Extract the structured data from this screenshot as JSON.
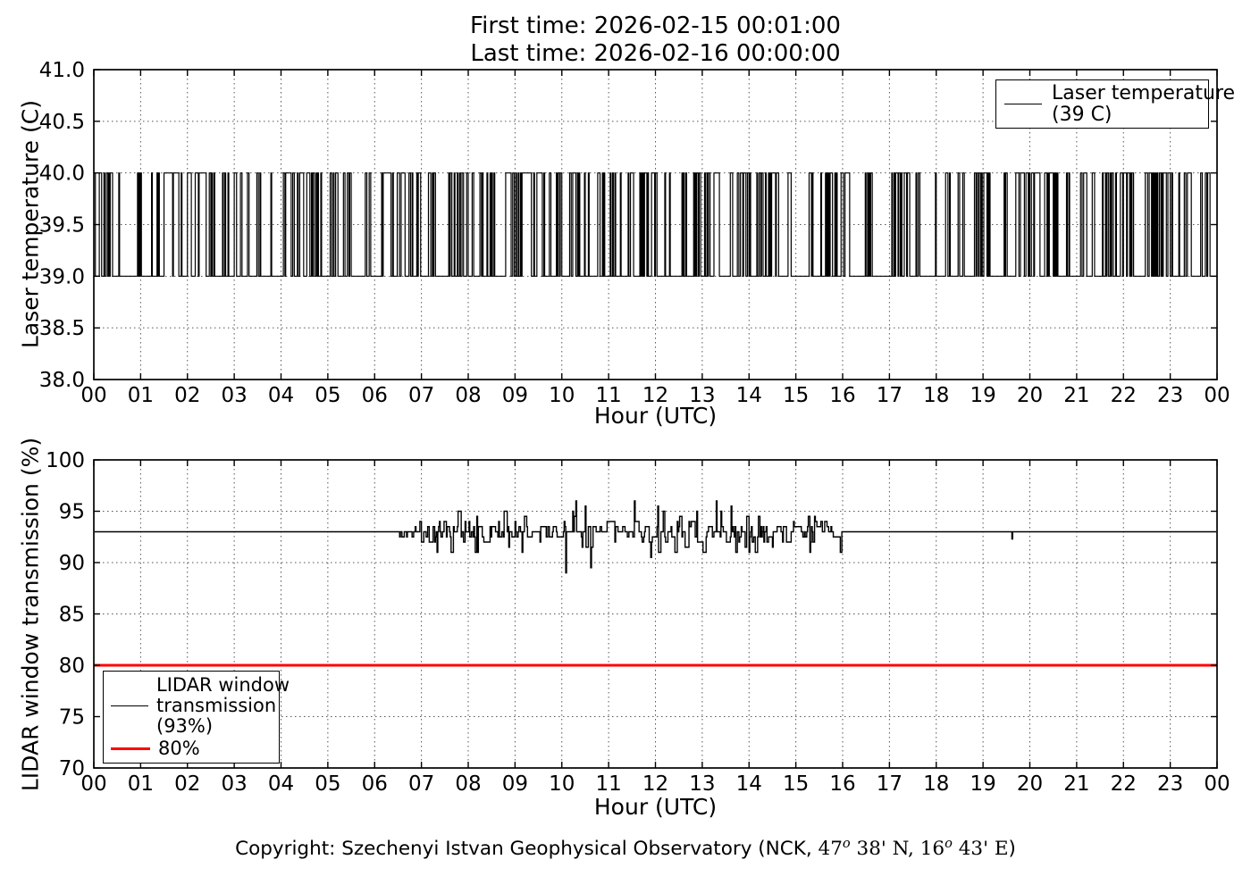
{
  "header": {
    "title_line1": "First time: 2026-02-15 00:01:00",
    "title_line2": "Last time: 2026-02-16 00:00:00"
  },
  "footer": {
    "copyright": {
      "prefix": "Copyright: Szechenyi Istvan Geophysical Observatory (NCK, ",
      "lat_degrees": "47",
      "degree_symbol": "o",
      "lat_minutes": " 38' N, ",
      "lon_degrees": "16",
      "lon_minutes": " 43' E",
      "suffix": ")"
    }
  },
  "colors": {
    "series_black": "#000000",
    "threshold_red": "#ff0000",
    "grid": "#555555",
    "frame": "#000000"
  },
  "chart_data": [
    {
      "type": "line",
      "title": "",
      "xlabel": "Hour (UTC)",
      "ylabel": "Laser temperature (C)",
      "xlim": [
        0,
        24
      ],
      "ylim": [
        38.0,
        41.0
      ],
      "grid": true,
      "xticks": [
        0,
        1,
        2,
        3,
        4,
        5,
        6,
        7,
        8,
        9,
        10,
        11,
        12,
        13,
        14,
        15,
        16,
        17,
        18,
        19,
        20,
        21,
        22,
        23,
        24
      ],
      "xtick_labels": [
        "00",
        "01",
        "02",
        "03",
        "04",
        "05",
        "06",
        "07",
        "08",
        "09",
        "10",
        "11",
        "12",
        "13",
        "14",
        "15",
        "16",
        "17",
        "18",
        "19",
        "20",
        "21",
        "22",
        "23",
        "00"
      ],
      "yticks": [
        38.0,
        38.5,
        39.0,
        39.5,
        40.0,
        40.5,
        41.0
      ],
      "ytick_labels": [
        "38.0",
        "38.5",
        "39.0",
        "39.5",
        "40.0",
        "40.5",
        "41.0"
      ],
      "legend": {
        "loc": "upper right",
        "entries": [
          {
            "label_line1": "Laser temperature",
            "label_line2": "(39 C)",
            "color": "#000000",
            "linewidth": 1
          }
        ]
      },
      "series": [
        {
          "name": "Laser temperature (39 C)",
          "color": "#000000",
          "linewidth": 1.2,
          "style": "steps",
          "generator": {
            "kind": "random-telegraph",
            "low": 39.0,
            "high": 40.0,
            "start_hour": 0.0167,
            "end_hour": 24.0,
            "step_minutes": 1,
            "seed": 7,
            "p_rise": 0.4,
            "p_fall": 0.5,
            "hold_prob": 0.15,
            "hold_min_minutes": 3,
            "hold_max_minutes": 14,
            "quiet_intervals": [
              [
                0.55,
                0.93
              ],
              [
                1.02,
                1.18
              ],
              [
                2.6,
                2.74
              ],
              [
                5.95,
                6.07
              ],
              [
                8.63,
                8.74
              ],
              [
                12.05,
                12.18
              ],
              [
                15.0,
                15.26
              ],
              [
                16.15,
                16.47
              ],
              [
                16.7,
                17.05
              ],
              [
                17.7,
                17.97
              ],
              [
                18.65,
                18.79
              ],
              [
                19.15,
                19.44
              ],
              [
                19.52,
                19.7
              ],
              [
                20.62,
                20.76
              ],
              [
                21.45,
                21.55
              ],
              [
                23.05,
                23.16
              ]
            ]
          }
        }
      ]
    },
    {
      "type": "line",
      "title": "",
      "xlabel": "Hour (UTC)",
      "ylabel": "LIDAR window transmission (%)",
      "xlim": [
        0,
        24
      ],
      "ylim": [
        70,
        100
      ],
      "grid": true,
      "xticks": [
        0,
        1,
        2,
        3,
        4,
        5,
        6,
        7,
        8,
        9,
        10,
        11,
        12,
        13,
        14,
        15,
        16,
        17,
        18,
        19,
        20,
        21,
        22,
        23,
        24
      ],
      "xtick_labels": [
        "00",
        "01",
        "02",
        "03",
        "04",
        "05",
        "06",
        "07",
        "08",
        "09",
        "10",
        "11",
        "12",
        "13",
        "14",
        "15",
        "16",
        "17",
        "18",
        "19",
        "20",
        "21",
        "22",
        "23",
        "00"
      ],
      "yticks": [
        70,
        75,
        80,
        85,
        90,
        95,
        100
      ],
      "ytick_labels": [
        "70",
        "75",
        "80",
        "85",
        "90",
        "95",
        "100"
      ],
      "legend": {
        "loc": "lower left",
        "entries": [
          {
            "label_line1": "LIDAR window",
            "label_line2": "transmission",
            "label_line3": "(93%)",
            "color": "#000000",
            "linewidth": 1
          },
          {
            "label_line1": "80%",
            "color": "#ff0000",
            "linewidth": 3
          }
        ]
      },
      "series": [
        {
          "name": "LIDAR window transmission (93%)",
          "color": "#000000",
          "linewidth": 1.4,
          "style": "steps",
          "generator": {
            "kind": "quantized-noise",
            "base": 93.0,
            "start_hour": 0.0167,
            "end_hour": 24.0,
            "step_minutes": 1,
            "seed": 11,
            "noisy_interval": [
              6.3,
              16.1
            ],
            "ramp_in_hours": 0.8,
            "ramp_out_hours": 0.35,
            "quantum": 0.5,
            "spikes": [
              {
                "t": 8.2,
                "v": 91.0
              },
              {
                "t": 9.15,
                "v": 91.0
              },
              {
                "t": 10.08,
                "v": 89.0
              },
              {
                "t": 10.3,
                "v": 96.0
              },
              {
                "t": 10.5,
                "v": 95.5
              },
              {
                "t": 10.62,
                "v": 89.5
              },
              {
                "t": 11.55,
                "v": 96.0
              },
              {
                "t": 11.9,
                "v": 90.5
              },
              {
                "t": 12.05,
                "v": 95.5
              },
              {
                "t": 13.3,
                "v": 96.0
              },
              {
                "t": 13.62,
                "v": 95.5
              },
              {
                "t": 14.5,
                "v": 91.5
              },
              {
                "t": 15.3,
                "v": 91.0
              },
              {
                "t": 19.62,
                "v": 92.3
              }
            ]
          }
        },
        {
          "name": "80%",
          "color": "#ff0000",
          "linewidth": 3,
          "style": "constant",
          "generator": {
            "kind": "constant",
            "value": 80
          }
        }
      ]
    }
  ]
}
